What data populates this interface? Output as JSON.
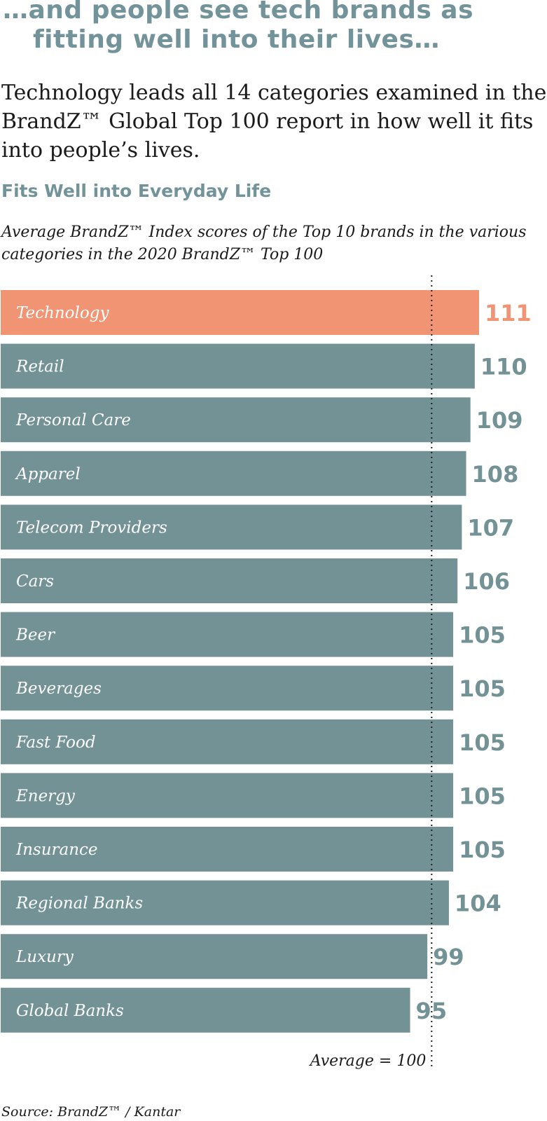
{
  "header": {
    "headline_line1": "…and people see tech brands as",
    "headline_line2": "fitting well into their lives…",
    "lead": "Technology leads all 14 categories examined in the BrandZ™ Global Top 100 report in how well it fits into people’s lives."
  },
  "colors": {
    "bar": "#729295",
    "highlight": "#f09474",
    "label_text": "#ffffff",
    "value_text": "#729295",
    "highlight_value_text": "#f09474"
  },
  "chart_data": {
    "type": "bar",
    "orientation": "horizontal",
    "title": "Fits Well into Everyday Life",
    "subtitle": "Average BrandZ™ Index scores of the Top 10 brands in the various categories in the 2020 BrandZ™ Top 100",
    "categories": [
      "Technology",
      "Retail",
      "Personal Care",
      "Apparel",
      "Telecom Providers",
      "Cars",
      "Beer",
      "Beverages",
      "Fast Food",
      "Energy",
      "Insurance",
      "Regional Banks",
      "Luxury",
      "Global Banks"
    ],
    "values": [
      111,
      110,
      109,
      108,
      107,
      106,
      105,
      105,
      105,
      105,
      105,
      104,
      99,
      95
    ],
    "highlight_category": "Technology",
    "reference_line": {
      "value": 100,
      "label": "Average = 100"
    },
    "xlim": [
      0,
      111
    ],
    "grid": false,
    "legend": "none"
  },
  "footer": {
    "source": "Source: BrandZ™ / Kantar"
  }
}
